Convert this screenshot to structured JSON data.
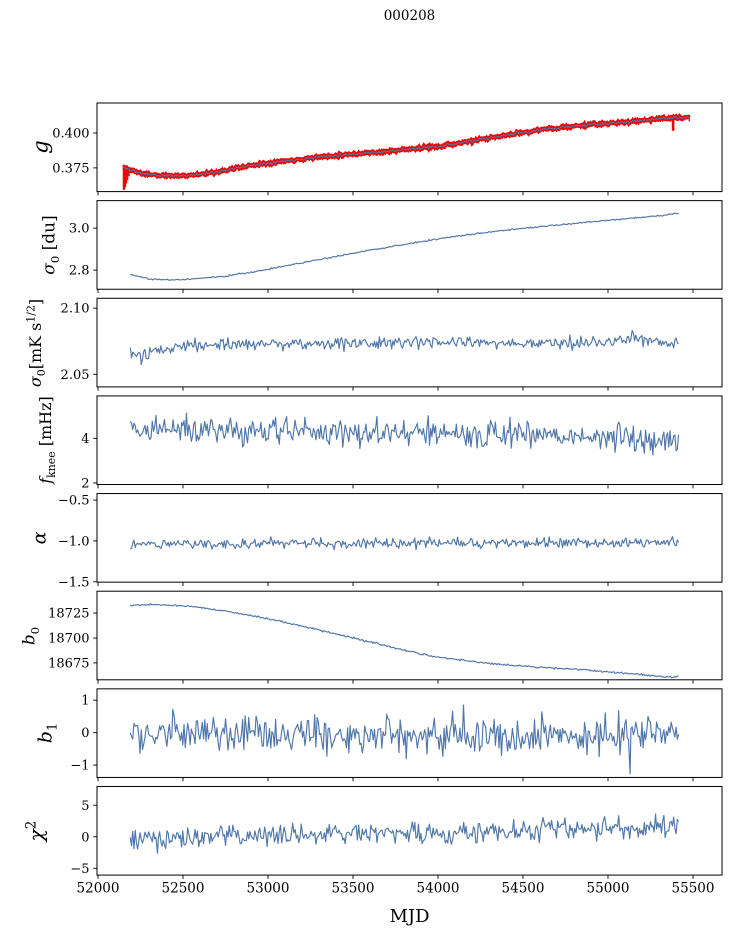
{
  "title": "000208",
  "xlabel": "MJD",
  "colors": {
    "line_blue": "#4f77aa",
    "errorbar_red": "#f40000",
    "spine_black": "#000000",
    "background": "#ffffff"
  },
  "x_axis": {
    "label": "MJD",
    "lim": [
      51994.1,
      55670.6
    ],
    "tick_values": [
      52000,
      52500,
      53000,
      53500,
      54000,
      54500,
      55000,
      55500
    ],
    "tick_labels": [
      "52000",
      "52500",
      "53000",
      "53500",
      "54000",
      "54500",
      "55000",
      "55500"
    ]
  },
  "chart_data": [
    {
      "id": "g",
      "type": "line",
      "ylabel_text": "g",
      "ylabel_tokens": [
        [
          "i",
          "g"
        ]
      ],
      "ylim": [
        0.358,
        0.4215
      ],
      "ytick_values": [
        0.4,
        0.375
      ],
      "ytick_labels": [
        "0.400",
        "0.375"
      ],
      "series": {
        "color_key": "line_blue",
        "x_range": [
          52150,
          55478
        ],
        "n_points": 470,
        "seed": 11,
        "noise_sigma": 0.0006,
        "trend": [
          [
            52150,
            0.3752
          ],
          [
            52250,
            0.3712
          ],
          [
            52370,
            0.3694
          ],
          [
            52500,
            0.3694
          ],
          [
            52650,
            0.3711
          ],
          [
            52800,
            0.3745
          ],
          [
            52950,
            0.3778
          ],
          [
            53100,
            0.38
          ],
          [
            53250,
            0.3822
          ],
          [
            53400,
            0.384
          ],
          [
            53550,
            0.3855
          ],
          [
            53700,
            0.3868
          ],
          [
            53850,
            0.3886
          ],
          [
            54000,
            0.3905
          ],
          [
            54150,
            0.3932
          ],
          [
            54300,
            0.3962
          ],
          [
            54450,
            0.3995
          ],
          [
            54600,
            0.4022
          ],
          [
            54750,
            0.4043
          ],
          [
            54900,
            0.406
          ],
          [
            55050,
            0.4072
          ],
          [
            55200,
            0.409
          ],
          [
            55320,
            0.4105
          ],
          [
            55478,
            0.4112
          ]
        ],
        "errorbar": {
          "color_key": "errorbar_red",
          "sigma": 0.0017,
          "seed": 12
        },
        "spikes": [
          [
            52153,
            0.3772,
            0.3593
          ],
          [
            52158,
            0.3762,
            0.3613
          ],
          [
            52164,
            0.3754,
            0.3638
          ],
          [
            52171,
            0.3749,
            0.3663
          ],
          [
            52179,
            0.3745,
            0.369
          ],
          [
            55383,
            0.4108,
            0.4016
          ]
        ]
      }
    },
    {
      "id": "sigma0_du",
      "type": "line",
      "ylabel_text": "sigma_0 [du]",
      "ylabel_tokens": [
        [
          "i",
          "σ"
        ],
        [
          "sub",
          "0"
        ],
        [
          "n",
          " [du]"
        ]
      ],
      "ylim": [
        2.709,
        3.131
      ],
      "ytick_values": [
        3.0,
        2.8
      ],
      "ytick_labels": [
        "3.0",
        "2.8"
      ],
      "series": {
        "color_key": "line_blue",
        "x_range": [
          52190,
          55415
        ],
        "n_points": 460,
        "seed": 21,
        "noise_sigma": 0.0022,
        "trend": [
          [
            52190,
            2.78
          ],
          [
            52300,
            2.758
          ],
          [
            52450,
            2.753
          ],
          [
            52600,
            2.76
          ],
          [
            52750,
            2.772
          ],
          [
            52900,
            2.79
          ],
          [
            53050,
            2.812
          ],
          [
            53200,
            2.835
          ],
          [
            53350,
            2.858
          ],
          [
            53500,
            2.88
          ],
          [
            53650,
            2.902
          ],
          [
            53800,
            2.922
          ],
          [
            53950,
            2.942
          ],
          [
            54100,
            2.96
          ],
          [
            54250,
            2.976
          ],
          [
            54400,
            2.99
          ],
          [
            54550,
            3.003
          ],
          [
            54700,
            3.015
          ],
          [
            54850,
            3.026
          ],
          [
            55000,
            3.037
          ],
          [
            55150,
            3.048
          ],
          [
            55300,
            3.059
          ],
          [
            55415,
            3.07
          ]
        ]
      }
    },
    {
      "id": "sigma0_mK",
      "type": "line",
      "ylabel_text": "sigma_0 [mK s^1/2]",
      "ylabel_tokens": [
        [
          "i",
          "σ"
        ],
        [
          "sub",
          "0"
        ],
        [
          "n",
          "[mK s"
        ],
        [
          "sup",
          "1/2"
        ],
        [
          "n",
          "]"
        ]
      ],
      "ylim": [
        2.0405,
        2.1075
      ],
      "ytick_values": [
        2.1,
        2.05
      ],
      "ytick_labels": [
        "2.10",
        "2.05"
      ],
      "series": {
        "color_key": "line_blue",
        "x_range": [
          52190,
          55415
        ],
        "n_points": 450,
        "seed": 31,
        "noise_sigma": 0.003,
        "trend": [
          [
            52190,
            2.0665
          ],
          [
            52240,
            2.062
          ],
          [
            52310,
            2.0655
          ],
          [
            52500,
            2.0725
          ],
          [
            52700,
            2.073
          ],
          [
            53000,
            2.0735
          ],
          [
            53500,
            2.073
          ],
          [
            54000,
            2.074
          ],
          [
            54500,
            2.0735
          ],
          [
            55000,
            2.074
          ],
          [
            55150,
            2.0775
          ],
          [
            55300,
            2.0745
          ],
          [
            55415,
            2.072
          ]
        ]
      }
    },
    {
      "id": "f_knee",
      "type": "line",
      "ylabel_text": "f_knee [mHz]",
      "ylabel_tokens": [
        [
          "i",
          "f"
        ],
        [
          "sub",
          "knee"
        ],
        [
          "n",
          " [mHz]"
        ]
      ],
      "ylim": [
        1.93,
        5.9
      ],
      "ytick_values": [
        4,
        2
      ],
      "ytick_labels": [
        "4",
        "2"
      ],
      "series": {
        "color_key": "line_blue",
        "x_range": [
          52190,
          55415
        ],
        "n_points": 450,
        "seed": 41,
        "noise_sigma": 0.38,
        "trend": [
          [
            52190,
            4.45
          ],
          [
            52500,
            4.4
          ],
          [
            53000,
            4.3
          ],
          [
            53500,
            4.25
          ],
          [
            54000,
            4.2
          ],
          [
            54500,
            4.15
          ],
          [
            55000,
            4.05
          ],
          [
            55415,
            3.95
          ]
        ]
      }
    },
    {
      "id": "alpha",
      "type": "line",
      "ylabel_text": "alpha",
      "ylabel_tokens": [
        [
          "i",
          "α"
        ]
      ],
      "ylim": [
        -1.505,
        -0.42
      ],
      "ytick_values": [
        -0.5,
        -1.0,
        -1.5
      ],
      "ytick_labels": [
        "−0.5",
        "−1.0",
        "−1.5"
      ],
      "series": {
        "color_key": "line_blue",
        "x_range": [
          52190,
          55415
        ],
        "n_points": 450,
        "seed": 51,
        "noise_sigma": 0.038,
        "trend": [
          [
            52190,
            -1.04
          ],
          [
            52400,
            -1.032
          ],
          [
            53000,
            -1.03
          ],
          [
            54000,
            -1.028
          ],
          [
            55000,
            -1.022
          ],
          [
            55415,
            -1.02
          ]
        ]
      }
    },
    {
      "id": "b0",
      "type": "line",
      "ylabel_text": "b_0",
      "ylabel_tokens": [
        [
          "i",
          "b"
        ],
        [
          "sub",
          "0"
        ]
      ],
      "ylim": [
        18658,
        18747
      ],
      "ytick_values": [
        18725,
        18700,
        18675
      ],
      "ytick_labels": [
        "18725",
        "18700",
        "18675"
      ],
      "series": {
        "color_key": "line_blue",
        "x_range": [
          52190,
          55415
        ],
        "n_points": 460,
        "seed": 61,
        "noise_sigma": 0.55,
        "trend": [
          [
            52190,
            18732.5
          ],
          [
            52300,
            18733.5
          ],
          [
            52450,
            18733.0
          ],
          [
            52600,
            18730.5
          ],
          [
            52750,
            18727.0
          ],
          [
            52900,
            18722.5
          ],
          [
            53050,
            18717.5
          ],
          [
            53200,
            18712.0
          ],
          [
            53350,
            18706.0
          ],
          [
            53500,
            18700.0
          ],
          [
            53650,
            18694.0
          ],
          [
            53800,
            18688.0
          ],
          [
            53953,
            18682.0
          ],
          [
            54100,
            18678.5
          ],
          [
            54250,
            18675.5
          ],
          [
            54400,
            18673.0
          ],
          [
            54550,
            18671.0
          ],
          [
            54700,
            18669.5
          ],
          [
            54850,
            18668.0
          ],
          [
            55000,
            18666.0
          ],
          [
            55150,
            18664.0
          ],
          [
            55300,
            18661.5
          ],
          [
            55380,
            18660.5
          ],
          [
            55415,
            18662.0
          ]
        ]
      }
    },
    {
      "id": "b1",
      "type": "line",
      "ylabel_text": "b_1",
      "ylabel_tokens": [
        [
          "i",
          "b"
        ],
        [
          "sub",
          "1"
        ]
      ],
      "ylim": [
        -1.38,
        1.35
      ],
      "ytick_values": [
        1,
        0,
        -1
      ],
      "ytick_labels": [
        "1",
        "0",
        "−1"
      ],
      "series": {
        "color_key": "line_blue",
        "x_range": [
          52190,
          55415
        ],
        "n_points": 450,
        "seed": 71,
        "noise_sigma": 0.33,
        "trend": [
          [
            52190,
            -0.02
          ],
          [
            53000,
            -0.08
          ],
          [
            54000,
            -0.05
          ],
          [
            55000,
            -0.05
          ],
          [
            55415,
            -0.02
          ]
        ],
        "outliers": [
          [
            55130,
            -1.27
          ],
          [
            52440,
            0.72
          ],
          [
            54150,
            0.85
          ]
        ]
      }
    },
    {
      "id": "chi2",
      "type": "line",
      "ylabel_text": "chi^2",
      "ylabel_tokens": [
        [
          "i",
          "χ"
        ],
        [
          "sup",
          "2"
        ]
      ],
      "ylim": [
        -6.08,
        7.98
      ],
      "ytick_values": [
        5,
        0,
        -5
      ],
      "ytick_labels": [
        "5",
        "0",
        "−5"
      ],
      "series": {
        "color_key": "line_blue",
        "x_range": [
          52190,
          55415
        ],
        "n_points": 450,
        "seed": 81,
        "noise_sigma": 1.05,
        "trend": [
          [
            52190,
            -0.15
          ],
          [
            52600,
            0.0
          ],
          [
            53100,
            0.3
          ],
          [
            53600,
            0.5
          ],
          [
            54100,
            0.7
          ],
          [
            54600,
            1.0
          ],
          [
            55100,
            1.3
          ],
          [
            55415,
            1.4
          ]
        ],
        "outliers": [
          [
            55280,
            3.6
          ],
          [
            54980,
            3.2
          ],
          [
            52350,
            -2.6
          ]
        ]
      }
    }
  ]
}
